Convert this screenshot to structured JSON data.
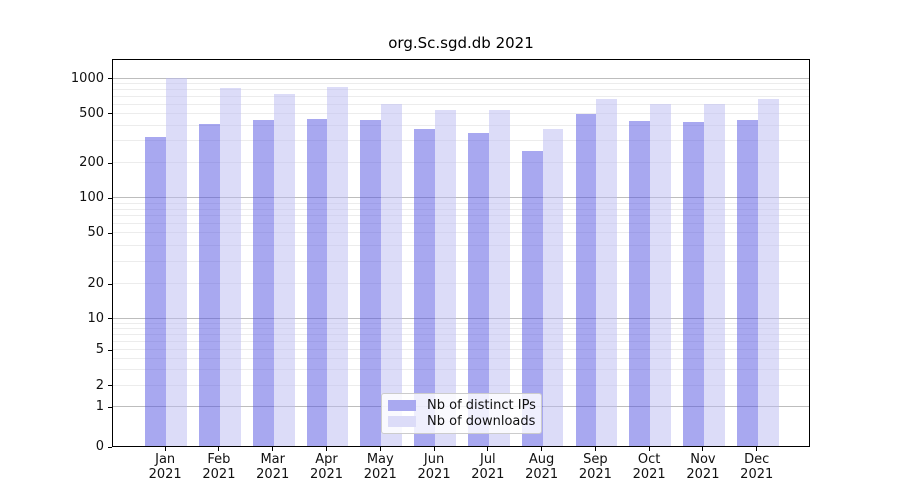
{
  "chart_data": {
    "type": "bar",
    "title": "org.Sc.sgd.db 2021",
    "categories": [
      "Jan",
      "Feb",
      "Mar",
      "Apr",
      "May",
      "Jun",
      "Jul",
      "Aug",
      "Sep",
      "Oct",
      "Nov",
      "Dec"
    ],
    "xtick_year": "2021",
    "series": [
      {
        "name": "Nb of distinct IPs",
        "color": "#a9a9f0",
        "fill": "rgba(82,82,226,0.5)",
        "values": [
          320,
          410,
          440,
          450,
          435,
          370,
          345,
          245,
          490,
          430,
          425,
          435
        ]
      },
      {
        "name": "Nb of downloads",
        "color": "#dcdcf8",
        "fill": "rgba(185,185,242,0.5)",
        "values": [
          1000,
          815,
          730,
          835,
          595,
          530,
          530,
          370,
          665,
          600,
          600,
          665
        ]
      }
    ],
    "yticks": [
      0,
      1,
      2,
      5,
      10,
      20,
      50,
      100,
      200,
      500,
      1000
    ],
    "ylim": [
      0,
      1450
    ],
    "yscale": "symlog",
    "grid": true,
    "grid_major_color": "#bdbdbd",
    "grid_minor_color": "#ececec",
    "axis_color": "#000000",
    "legend_position": "lower center"
  }
}
